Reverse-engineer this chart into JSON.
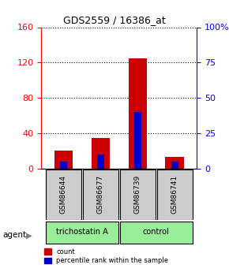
{
  "title": "GDS2559 / 16386_at",
  "samples": [
    "GSM86644",
    "GSM86677",
    "GSM86739",
    "GSM86741"
  ],
  "count_values": [
    20,
    35,
    125,
    13
  ],
  "percentile_values": [
    5,
    10,
    40,
    5
  ],
  "left_ylim": [
    0,
    160
  ],
  "right_ylim": [
    0,
    100
  ],
  "left_yticks": [
    0,
    40,
    80,
    120,
    160
  ],
  "right_yticks": [
    0,
    25,
    50,
    75,
    100
  ],
  "right_yticklabels": [
    "0",
    "25",
    "50",
    "75",
    "100%"
  ],
  "bar_color": "#cc0000",
  "pct_color": "#0000cc",
  "grid_color": "#000000",
  "agent_labels": [
    "trichostatin A",
    "control"
  ],
  "agent_groups": [
    2,
    2
  ],
  "agent_bg_color": "#99ee99",
  "sample_bg_color": "#cccccc",
  "bar_width": 0.5,
  "legend_count_label": "count",
  "legend_pct_label": "percentile rank within the sample"
}
